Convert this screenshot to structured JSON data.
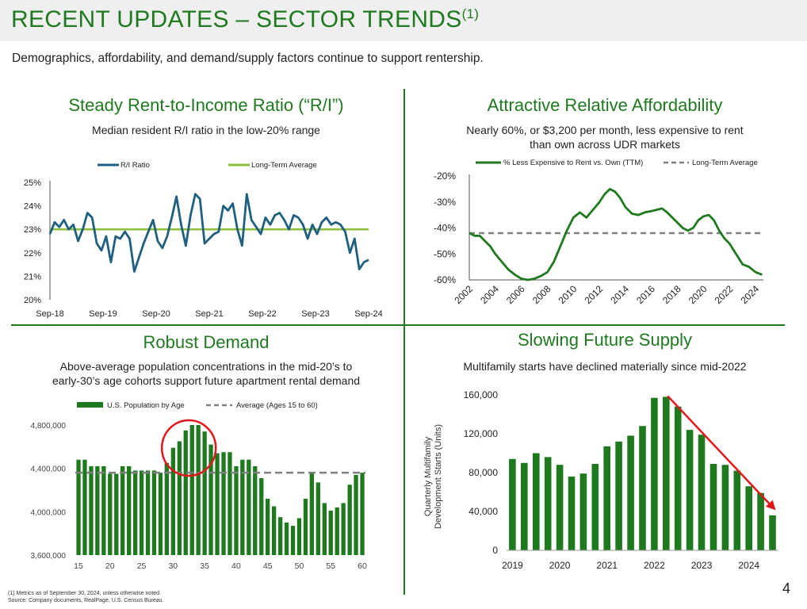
{
  "header": {
    "title": "RECENT UPDATES – SECTOR TRENDS",
    "footnote_marker": "(1)",
    "subtitle": "Demographics, affordability, and demand/supply factors continue to support rentership."
  },
  "panels": [
    {
      "title": "Steady Rent-to-Income Ratio (“R/I”)",
      "subtitle": "Median resident R/I ratio in the low-20% range"
    },
    {
      "title": "Attractive Relative Affordability",
      "subtitle_line1": "Nearly 60%, or $3,200 per month, less expensive to rent",
      "subtitle_line2": "than own across UDR markets"
    },
    {
      "title": "Robust Demand",
      "subtitle_line1": "Above-average population concentrations in the mid-20’s to",
      "subtitle_line2": "early-30’s age cohorts support future apartment rental demand"
    },
    {
      "title": "Slowing Future Supply",
      "subtitle": "Multifamily starts have declined materially since mid-2022"
    }
  ],
  "footer": {
    "note1": "(1)    Metrics as of September 30, 2024, unless otherwise noted.",
    "note2": "Source: Company documents, RealPage, U.S. Census Bureau.",
    "page_number": "4"
  },
  "colors": {
    "brand_green": "#1f7a1f",
    "ri_line": "#1f5f7f",
    "avg_green": "#8cbf3c",
    "dash_gray": "#808080",
    "bar_green": "#1f7a1f",
    "circle_red": "#e0181b",
    "arrow_red": "#e0181b"
  },
  "chart_data": [
    {
      "type": "line",
      "title": "Steady Rent-to-Income Ratio (“R/I”)",
      "legend": [
        "R/I Ratio",
        "Long-Term Average"
      ],
      "ylim": [
        20,
        25
      ],
      "yticks": [
        "20%",
        "21%",
        "22%",
        "23%",
        "24%",
        "25%"
      ],
      "xticks": [
        "Sep-18",
        "Sep-19",
        "Sep-20",
        "Sep-21",
        "Sep-22",
        "Sep-23",
        "Sep-24"
      ],
      "long_term_average": 23.0,
      "series": [
        {
          "name": "R/I Ratio",
          "values": [
            22.8,
            23.3,
            23.1,
            23.4,
            23.0,
            23.2,
            22.5,
            23.0,
            23.7,
            23.5,
            22.4,
            22.1,
            22.7,
            21.6,
            22.7,
            22.6,
            22.9,
            22.6,
            21.2,
            21.8,
            22.4,
            22.9,
            23.4,
            22.5,
            22.2,
            22.7,
            23.5,
            24.4,
            23.2,
            22.3,
            23.6,
            24.5,
            24.3,
            22.4,
            22.6,
            22.8,
            22.9,
            24.0,
            23.8,
            24.1,
            23.0,
            22.3,
            24.5,
            23.4,
            23.1,
            22.8,
            23.5,
            23.2,
            23.6,
            23.7,
            23.4,
            23.0,
            23.6,
            23.5,
            23.2,
            22.6,
            23.2,
            22.8,
            23.3,
            23.5,
            23.2,
            23.3,
            23.2,
            22.9,
            22.0,
            22.6,
            21.3,
            21.6,
            21.7
          ]
        }
      ]
    },
    {
      "type": "line",
      "title": "Attractive Relative Affordability",
      "legend": [
        "% Less Expensive to Rent vs. Own (TTM)",
        "Long-Term Average"
      ],
      "ylim": [
        -60,
        -20
      ],
      "yticks": [
        "-60%",
        "-50%",
        "-40%",
        "-30%",
        "-20%"
      ],
      "xticks": [
        "2002",
        "2004",
        "2006",
        "2008",
        "2010",
        "2012",
        "2014",
        "2016",
        "2018",
        "2020",
        "2022",
        "2024"
      ],
      "long_term_average": -42,
      "series": [
        {
          "name": "% Less Expensive to Rent vs. Own (TTM)",
          "x": [
            2002.0,
            2002.4,
            2002.8,
            2003.2,
            2003.6,
            2004.0,
            2004.5,
            2005.0,
            2005.5,
            2006.0,
            2006.5,
            2007.0,
            2007.5,
            2008.0,
            2008.5,
            2009.0,
            2009.5,
            2010.0,
            2010.5,
            2011.0,
            2011.5,
            2012.0,
            2012.4,
            2012.8,
            2013.2,
            2013.6,
            2014.0,
            2014.5,
            2015.0,
            2015.5,
            2016.0,
            2016.4,
            2016.8,
            2017.2,
            2017.6,
            2018.0,
            2018.4,
            2018.8,
            2019.2,
            2019.6,
            2020.0,
            2020.4,
            2020.8,
            2021.2,
            2021.6,
            2022.0,
            2022.5,
            2023.0,
            2023.5,
            2024.0,
            2024.5
          ],
          "values": [
            -42,
            -43,
            -43,
            -45,
            -47,
            -50,
            -53,
            -56,
            -58,
            -59.5,
            -60,
            -59.5,
            -58.5,
            -57,
            -53,
            -47,
            -41,
            -36,
            -34,
            -36,
            -33,
            -30,
            -27,
            -25,
            -26,
            -28.5,
            -32,
            -34.5,
            -35,
            -34,
            -33.5,
            -33,
            -32.5,
            -34,
            -36,
            -38,
            -40,
            -41,
            -40,
            -37,
            -35.5,
            -35,
            -37,
            -41,
            -44,
            -46,
            -50,
            -54,
            -55,
            -57,
            -58
          ]
        }
      ]
    },
    {
      "type": "bar",
      "title": "Robust Demand",
      "legend": [
        "U.S. Population by Age",
        "Average (Ages 15 to 60)"
      ],
      "ylim": [
        3600000,
        4800000
      ],
      "yticks": [
        "3,600,000",
        "4,000,000",
        "4,400,000",
        "4,800,000"
      ],
      "xticks": [
        "15",
        "20",
        "25",
        "30",
        "35",
        "40",
        "45",
        "50",
        "55",
        "60"
      ],
      "average": 4360000,
      "categories": [
        15,
        16,
        17,
        18,
        19,
        20,
        21,
        22,
        23,
        24,
        25,
        26,
        27,
        28,
        29,
        30,
        31,
        32,
        33,
        34,
        35,
        36,
        37,
        38,
        39,
        40,
        41,
        42,
        43,
        44,
        45,
        46,
        47,
        48,
        49,
        50,
        51,
        52,
        53,
        54,
        55,
        56,
        57,
        58,
        59,
        60
      ],
      "values": [
        4480000,
        4480000,
        4420000,
        4420000,
        4420000,
        4350000,
        4350000,
        4420000,
        4420000,
        4380000,
        4380000,
        4380000,
        4380000,
        4360000,
        4450000,
        4590000,
        4650000,
        4750000,
        4800000,
        4800000,
        4740000,
        4620000,
        4540000,
        4550000,
        4550000,
        4420000,
        4480000,
        4480000,
        4420000,
        4310000,
        4120000,
        4050000,
        3950000,
        3900000,
        3870000,
        3940000,
        4120000,
        4360000,
        4270000,
        4080000,
        4010000,
        4040000,
        4080000,
        4250000,
        4340000,
        4360000
      ]
    },
    {
      "type": "bar",
      "title": "Slowing Future Supply",
      "ylabel_line1": "Quarterly Multifamily",
      "ylabel_line2": "Development Starts (Units)",
      "ylim": [
        0,
        160000
      ],
      "yticks": [
        "0",
        "40,000",
        "80,000",
        "120,000",
        "160,000"
      ],
      "xticks": [
        "2019",
        "2020",
        "2021",
        "2022",
        "2023",
        "2024"
      ],
      "categories": [
        "Q1 2019",
        "Q2 2019",
        "Q3 2019",
        "Q4 2019",
        "Q1 2020",
        "Q2 2020",
        "Q3 2020",
        "Q4 2020",
        "Q1 2021",
        "Q2 2021",
        "Q3 2021",
        "Q4 2021",
        "Q1 2022",
        "Q2 2022",
        "Q3 2022",
        "Q4 2022",
        "Q1 2023",
        "Q2 2023",
        "Q3 2023",
        "Q4 2023",
        "Q1 2024",
        "Q2 2024",
        "Q3 2024"
      ],
      "values": [
        94000,
        90000,
        100000,
        96000,
        88000,
        76000,
        79000,
        89000,
        107000,
        112000,
        118000,
        128000,
        157000,
        158000,
        148000,
        124000,
        119000,
        89000,
        88000,
        82000,
        66000,
        59000,
        36000
      ]
    }
  ]
}
